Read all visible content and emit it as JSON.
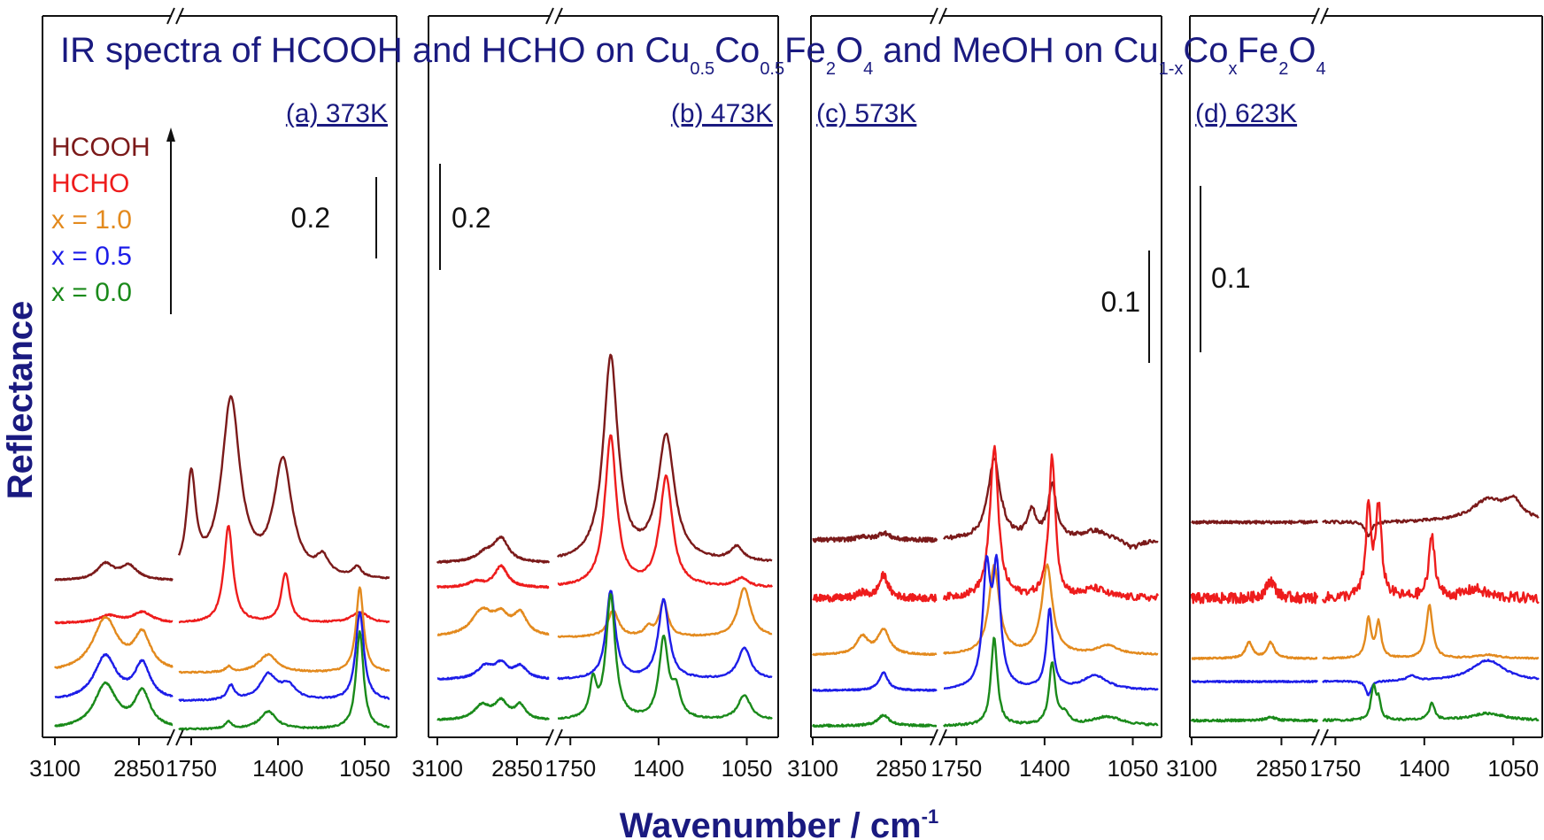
{
  "chart_data": {
    "type": "line",
    "title": {
      "segments": [
        {
          "text": "IR spectra of HCOOH and HCHO on Cu",
          "sub": false
        },
        {
          "text": "0.5",
          "sub": true
        },
        {
          "text": "Co",
          "sub": false
        },
        {
          "text": "0.5",
          "sub": true
        },
        {
          "text": "Fe",
          "sub": false
        },
        {
          "text": "2",
          "sub": true
        },
        {
          "text": "O",
          "sub": false
        },
        {
          "text": "4",
          "sub": true
        },
        {
          "text": " and MeOH on Cu",
          "sub": false
        },
        {
          "text": "1-x",
          "sub": true
        },
        {
          "text": "Co",
          "sub": false
        },
        {
          "text": "x",
          "sub": true
        },
        {
          "text": "Fe",
          "sub": false
        },
        {
          "text": "2",
          "sub": true
        },
        {
          "text": "O",
          "sub": false
        },
        {
          "text": "4",
          "sub": true
        }
      ]
    },
    "ylabel": "Reflectance",
    "xlabel": "Wavenumber / cm",
    "xlabel_sup": "-1",
    "x_axis_type": "broken",
    "x_segments": [
      {
        "range": [
          3100,
          2750
        ],
        "ticks": [
          3100,
          2850
        ]
      },
      {
        "range": [
          1800,
          950
        ],
        "ticks": [
          1750,
          1400,
          1050
        ]
      }
    ],
    "legend": {
      "placement": "top-left",
      "entries": [
        {
          "name": "HCOOH",
          "color": "#7b1a1a"
        },
        {
          "name": "HCHO",
          "color": "#ee1c1c"
        },
        {
          "name": "x = 1.0",
          "color": "#e38a1e"
        },
        {
          "name": "x = 0.5",
          "color": "#1d1de8"
        },
        {
          "name": "x = 0.0",
          "color": "#1a8a1a"
        }
      ]
    },
    "panels": [
      {
        "label": "(a) 373K",
        "scale_bar": "0.2",
        "series": [
          {
            "name": "HCOOH",
            "offset": 0.82,
            "peaks_ch": [
              [
                2950,
                0.09,
                30
              ],
              [
                2880,
                0.08,
                30
              ]
            ],
            "peaks_fp": [
              [
                1750,
                0.55,
                22
              ],
              [
                1590,
                1.0,
                45
              ],
              [
                1380,
                0.65,
                45
              ],
              [
                1220,
                0.1,
                30
              ],
              [
                1080,
                0.06,
                20
              ]
            ],
            "noise": 0.004
          },
          {
            "name": "HCHO",
            "offset": 0.58,
            "peaks_ch": [
              [
                2940,
                0.04,
                35
              ],
              [
                2840,
                0.06,
                35
              ]
            ],
            "peaks_fp": [
              [
                1600,
                0.55,
                22
              ],
              [
                1370,
                0.28,
                20
              ],
              [
                1070,
                0.06,
                40
              ]
            ],
            "noise": 0.004
          },
          {
            "name": "x = 1.0",
            "offset": 0.3,
            "peaks_ch": [
              [
                2950,
                0.3,
                45
              ],
              [
                2840,
                0.2,
                30
              ]
            ],
            "peaks_fp": [
              [
                1600,
                0.03,
                15
              ],
              [
                1440,
                0.1,
                45
              ],
              [
                1070,
                0.48,
                18
              ]
            ],
            "noise": 0.004
          },
          {
            "name": "x = 0.5",
            "offset": 0.14,
            "peaks_ch": [
              [
                2950,
                0.25,
                40
              ],
              [
                2840,
                0.2,
                28
              ]
            ],
            "peaks_fp": [
              [
                1590,
                0.08,
                18
              ],
              [
                1440,
                0.14,
                40
              ],
              [
                1360,
                0.08,
                40
              ],
              [
                1070,
                0.5,
                20
              ]
            ],
            "noise": 0.004
          },
          {
            "name": "x = 0.0",
            "offset": -0.02,
            "peaks_ch": [
              [
                2950,
                0.25,
                40
              ],
              [
                2840,
                0.2,
                28
              ]
            ],
            "peaks_fp": [
              [
                1600,
                0.04,
                15
              ],
              [
                1440,
                0.1,
                40
              ],
              [
                1070,
                0.55,
                18
              ]
            ],
            "noise": 0.004
          }
        ]
      },
      {
        "label": "(b) 473K",
        "scale_bar": "0.2",
        "series": [
          {
            "name": "HCOOH",
            "offset": 0.92,
            "peaks_ch": [
              [
                2900,
                0.13,
                28
              ],
              [
                2950,
                0.05,
                35
              ]
            ],
            "peaks_fp": [
              [
                1590,
                1.15,
                35
              ],
              [
                1370,
                0.7,
                40
              ],
              [
                1090,
                0.08,
                30
              ]
            ],
            "noise": 0.005
          },
          {
            "name": "HCHO",
            "offset": 0.78,
            "peaks_ch": [
              [
                2900,
                0.12,
                25
              ],
              [
                2980,
                0.03,
                30
              ]
            ],
            "peaks_fp": [
              [
                1590,
                0.85,
                28
              ],
              [
                1370,
                0.62,
                30
              ],
              [
                1070,
                0.05,
                30
              ]
            ],
            "noise": 0.005
          },
          {
            "name": "x = 1.0",
            "offset": 0.5,
            "peaks_ch": [
              [
                2960,
                0.14,
                40
              ],
              [
                2900,
                0.1,
                30
              ],
              [
                2840,
                0.12,
                25
              ]
            ],
            "peaks_fp": [
              [
                1580,
                0.15,
                25
              ],
              [
                1440,
                0.05,
                20
              ],
              [
                1380,
                0.2,
                20
              ],
              [
                1060,
                0.28,
                30
              ]
            ],
            "noise": 0.004
          },
          {
            "name": "x = 0.5",
            "offset": 0.26,
            "peaks_ch": [
              [
                2950,
                0.07,
                30
              ],
              [
                2900,
                0.08,
                25
              ],
              [
                2840,
                0.07,
                25
              ]
            ],
            "peaks_fp": [
              [
                1590,
                0.5,
                22
              ],
              [
                1380,
                0.45,
                25
              ],
              [
                1060,
                0.18,
                30
              ]
            ],
            "noise": 0.004
          },
          {
            "name": "x = 0.0",
            "offset": 0.03,
            "peaks_ch": [
              [
                2960,
                0.08,
                30
              ],
              [
                2900,
                0.1,
                25
              ],
              [
                2840,
                0.08,
                20
              ]
            ],
            "peaks_fp": [
              [
                1660,
                0.2,
                15
              ],
              [
                1590,
                0.7,
                22
              ],
              [
                1380,
                0.45,
                22
              ],
              [
                1330,
                0.15,
                20
              ],
              [
                1060,
                0.14,
                30
              ]
            ],
            "noise": 0.004
          }
        ]
      },
      {
        "label": "(c) 573K",
        "scale_bar": "0.1",
        "series": [
          {
            "name": "HCOOH",
            "offset": 1.05,
            "peaks_ch": [
              [
                2960,
                0.02,
                15
              ],
              [
                2900,
                0.04,
                20
              ]
            ],
            "peaks_fp": [
              [
                1600,
                0.45,
                30
              ],
              [
                1450,
                0.15,
                20
              ],
              [
                1370,
                0.3,
                20
              ],
              [
                1200,
                0.05,
                60
              ],
              [
                1050,
                -0.05,
                40
              ]
            ],
            "noise": 0.012
          },
          {
            "name": "HCHO",
            "offset": 0.72,
            "peaks_ch": [
              [
                2960,
                0.03,
                15
              ],
              [
                2900,
                0.13,
                15
              ]
            ],
            "peaks_fp": [
              [
                1600,
                0.85,
                20
              ],
              [
                1370,
                0.8,
                16
              ],
              [
                1200,
                0.05,
                50
              ]
            ],
            "noise": 0.02
          },
          {
            "name": "x = 1.0",
            "offset": 0.4,
            "peaks_ch": [
              [
                2960,
                0.1,
                20
              ],
              [
                2900,
                0.14,
                20
              ]
            ],
            "peaks_fp": [
              [
                1600,
                0.5,
                25
              ],
              [
                1390,
                0.5,
                25
              ],
              [
                1150,
                0.05,
                50
              ]
            ],
            "noise": 0.004
          },
          {
            "name": "x = 0.5",
            "offset": 0.2,
            "peaks_ch": [
              [
                2900,
                0.1,
                15
              ]
            ],
            "peaks_fp": [
              [
                1630,
                0.65,
                18
              ],
              [
                1590,
                0.65,
                18
              ],
              [
                1380,
                0.45,
                15
              ],
              [
                1200,
                0.08,
                60
              ]
            ],
            "noise": 0.004
          },
          {
            "name": "x = 0.0",
            "offset": 0.0,
            "peaks_ch": [
              [
                2900,
                0.06,
                20
              ]
            ],
            "peaks_fp": [
              [
                1600,
                0.5,
                15
              ],
              [
                1370,
                0.35,
                15
              ],
              [
                1320,
                0.06,
                20
              ],
              [
                1150,
                0.05,
                70
              ]
            ],
            "noise": 0.006
          }
        ]
      },
      {
        "label": "(d) 623K",
        "scale_bar": "0.1",
        "series": [
          {
            "name": "HCOOH",
            "offset": 1.15,
            "peaks_ch": [],
            "peaks_fp": [
              [
                1620,
                -0.08,
                15
              ],
              [
                1150,
                0.12,
                80
              ],
              [
                1050,
                0.1,
                40
              ]
            ],
            "noise": 0.008
          },
          {
            "name": "HCHO",
            "offset": 0.72,
            "peaks_ch": [
              [
                2880,
                0.1,
                15
              ]
            ],
            "peaks_fp": [
              [
                1620,
                0.5,
                12
              ],
              [
                1580,
                0.5,
                14
              ],
              [
                1370,
                0.35,
                14
              ],
              [
                1200,
                0.05,
                50
              ]
            ],
            "noise": 0.03
          },
          {
            "name": "x = 1.0",
            "offset": 0.38,
            "peaks_ch": [
              [
                2940,
                0.09,
                12
              ],
              [
                2880,
                0.09,
                12
              ]
            ],
            "peaks_fp": [
              [
                1620,
                0.22,
                12
              ],
              [
                1580,
                0.2,
                12
              ],
              [
                1380,
                0.3,
                15
              ],
              [
                1150,
                0.02,
                50
              ]
            ],
            "noise": 0.004
          },
          {
            "name": "x = 0.5",
            "offset": 0.25,
            "peaks_ch": [],
            "peaks_fp": [
              [
                1620,
                -0.08,
                12
              ],
              [
                1450,
                0.03,
                20
              ],
              [
                1150,
                0.12,
                80
              ]
            ],
            "noise": 0.004
          },
          {
            "name": "x = 0.0",
            "offset": 0.03,
            "peaks_ch": [
              [
                2880,
                0.02,
                15
              ]
            ],
            "peaks_fp": [
              [
                1600,
                0.18,
                12
              ],
              [
                1580,
                0.1,
                10
              ],
              [
                1370,
                0.1,
                12
              ],
              [
                1150,
                0.04,
                80
              ]
            ],
            "noise": 0.006
          }
        ]
      }
    ]
  }
}
